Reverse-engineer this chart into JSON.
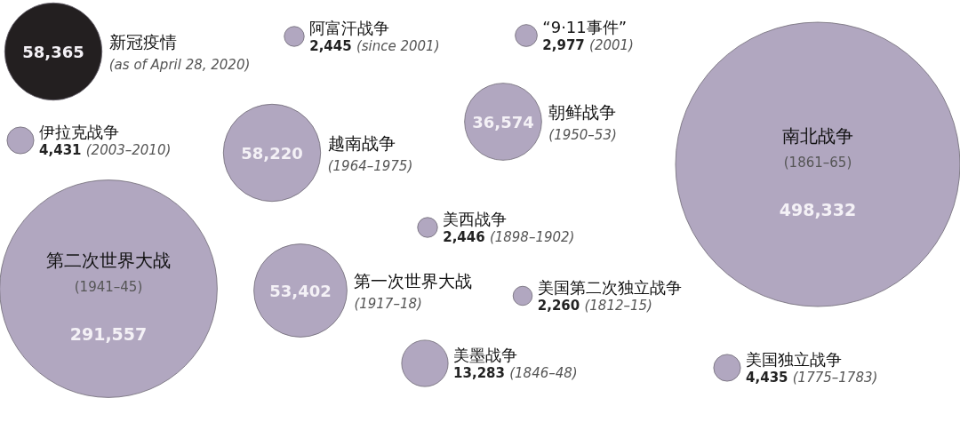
{
  "chart_data": {
    "type": "other",
    "categories": [
      "新冠疫情",
      "阿富汗战争",
      "“9·11事件”",
      "伊拉克战争",
      "越南战争",
      "朝鲜战争",
      "南北战争",
      "美西战争",
      "第二次世界大战",
      "第一次世界大战",
      "美国第二次独立战争",
      "美墨战争",
      "美国独立战争"
    ],
    "values": [
      58365,
      2445,
      2977,
      4431,
      58220,
      36574,
      498332,
      2446,
      291557,
      53402,
      2260,
      13283,
      4435
    ],
    "colors": [
      "#231f20",
      "#b1a7c0",
      "#b1a7c0",
      "#b1a7c0",
      "#b1a7c0",
      "#b1a7c0",
      "#b1a7c0",
      "#b1a7c0",
      "#b1a7c0",
      "#b1a7c0",
      "#b1a7c0",
      "#b1a7c0",
      "#b1a7c0"
    ],
    "annotations": [
      "(as of April 28, 2020)",
      "(since 2001)",
      "(2001)",
      "(2003–2010)",
      "(1964–1975)",
      "(1950–53)",
      "(1861–65)",
      "(1898–1902)",
      "(1941–45)",
      "(1917–18)",
      "(1812–15)",
      "(1846–48)",
      "(1775–1783)"
    ],
    "value_labels": [
      "58,365",
      "2,445",
      "2,977",
      "4,431",
      "58,220",
      "36,574",
      "498,332",
      "2,446",
      "291,557",
      "53,402",
      "2,260",
      "13,283",
      "4,435"
    ]
  }
}
